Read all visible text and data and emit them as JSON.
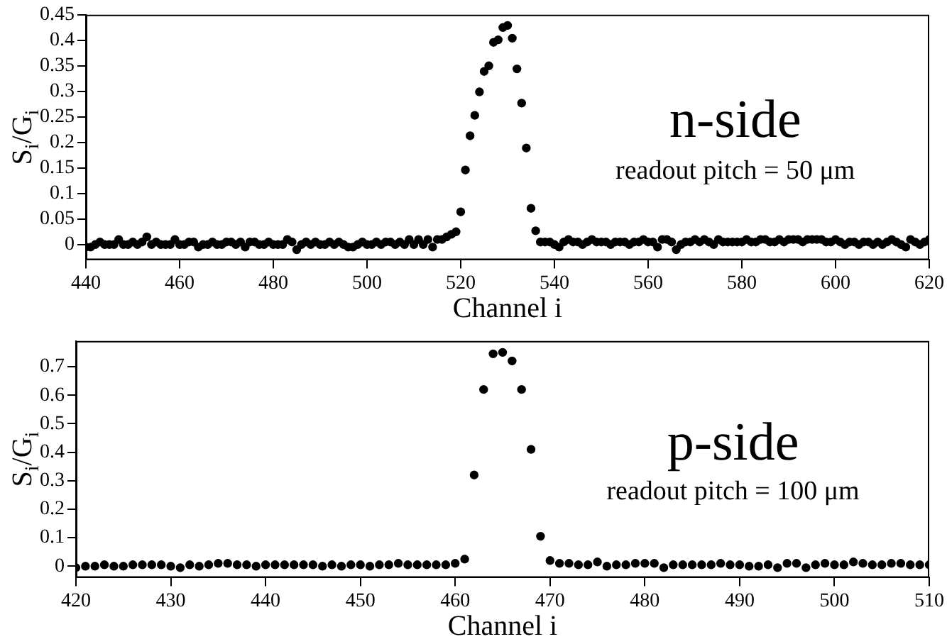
{
  "chart_data": [
    {
      "type": "scatter",
      "xlabel": "Channel i",
      "ylabel": "S$_{i}$/G$_{i}$",
      "marker": "circle",
      "grid": false,
      "legend": false,
      "annotations": [
        "n-side",
        "readout pitch = 50 μm"
      ],
      "xlim": [
        440,
        620
      ],
      "xticks": [
        440,
        460,
        480,
        500,
        520,
        540,
        560,
        580,
        600,
        620
      ],
      "ylim": [
        -0.03,
        0.45
      ],
      "yticks": [
        0,
        0.05,
        0.1,
        0.15,
        0.2,
        0.25,
        0.3,
        0.35,
        0.4,
        0.45
      ],
      "series": [
        {
          "color": "#000000",
          "x": [
            440,
            441,
            442,
            443,
            444,
            445,
            446,
            447,
            448,
            449,
            450,
            451,
            452,
            453,
            454,
            455,
            456,
            457,
            458,
            459,
            460,
            461,
            462,
            463,
            464,
            465,
            466,
            467,
            468,
            469,
            470,
            471,
            472,
            473,
            474,
            475,
            476,
            477,
            478,
            479,
            480,
            481,
            482,
            483,
            484,
            485,
            486,
            487,
            488,
            489,
            490,
            491,
            492,
            493,
            494,
            495,
            496,
            497,
            498,
            499,
            500,
            501,
            502,
            503,
            504,
            505,
            506,
            507,
            508,
            509,
            510,
            511,
            512,
            513,
            514,
            515,
            516,
            517,
            518,
            519,
            520,
            521,
            522,
            523,
            524,
            525,
            526,
            527,
            528,
            529,
            530,
            531,
            532,
            533,
            534,
            535,
            536,
            537,
            538,
            539,
            540,
            541,
            542,
            543,
            544,
            545,
            546,
            547,
            548,
            549,
            550,
            551,
            552,
            553,
            554,
            555,
            556,
            557,
            558,
            559,
            560,
            561,
            562,
            563,
            564,
            565,
            566,
            567,
            568,
            569,
            570,
            571,
            572,
            573,
            574,
            575,
            576,
            577,
            578,
            579,
            580,
            581,
            582,
            583,
            584,
            585,
            586,
            587,
            588,
            589,
            590,
            591,
            592,
            593,
            594,
            595,
            596,
            597,
            598,
            599,
            600,
            601,
            602,
            603,
            604,
            605,
            606,
            607,
            608,
            609,
            610,
            611,
            612,
            613,
            614,
            615,
            616,
            617,
            618,
            619,
            620
          ],
          "values": [
            -0.005,
            -0.005,
            0,
            0.005,
            0,
            0,
            0,
            0.01,
            0,
            0,
            0.005,
            0,
            0.005,
            0.015,
            0,
            0.005,
            0,
            0,
            0,
            0.01,
            0,
            0,
            0.005,
            0.005,
            -0.005,
            0,
            0,
            0.005,
            0,
            0,
            0.005,
            0.005,
            0,
            0.005,
            -0.005,
            0.005,
            0.005,
            0,
            0,
            0.005,
            0,
            0,
            0,
            0.01,
            0.005,
            -0.01,
            0,
            0.005,
            0,
            0.005,
            0,
            0,
            0.005,
            0,
            0.005,
            0,
            -0.005,
            -0.005,
            0,
            0.005,
            0,
            0,
            0.005,
            0,
            0.005,
            0.005,
            0,
            0.005,
            0,
            0.01,
            0,
            0.01,
            0,
            0.01,
            -0.005,
            0.01,
            0.01,
            0.015,
            0.02,
            0.025,
            0.064,
            0.146,
            0.213,
            0.253,
            0.299,
            0.339,
            0.35,
            0.396,
            0.401,
            0.425,
            0.429,
            0.404,
            0.344,
            0.277,
            0.189,
            0.071,
            0.027,
            0.005,
            0.005,
            0.005,
            0,
            -0.005,
            0.005,
            0.01,
            0.005,
            0.005,
            0,
            0.005,
            0.01,
            0.005,
            0.005,
            0.005,
            0,
            0.005,
            0.005,
            0.005,
            0,
            0.005,
            0.005,
            0.01,
            0.005,
            0.005,
            -0.005,
            0.01,
            0.01,
            0.005,
            -0.01,
            0,
            0.005,
            0.005,
            0.01,
            0.005,
            0.01,
            0.005,
            0,
            0.01,
            0.005,
            0.005,
            0.005,
            0.005,
            0.005,
            0.01,
            0.005,
            0.005,
            0.01,
            0.01,
            0.005,
            0.005,
            0.01,
            0.005,
            0.01,
            0.01,
            0.01,
            0.005,
            0.01,
            0.01,
            0.01,
            0.01,
            0.005,
            0.005,
            0.01,
            0.005,
            0,
            0.005,
            0.005,
            0,
            0.005,
            0.005,
            0,
            0.005,
            0,
            0.005,
            0.01,
            0.005,
            0,
            -0.005,
            0.01,
            0.005,
            0,
            0.005,
            0.01
          ]
        }
      ]
    },
    {
      "type": "scatter",
      "xlabel": "Channel i",
      "ylabel": "S$_{i}$/G$_{i}$",
      "marker": "circle",
      "grid": false,
      "legend": false,
      "annotations": [
        "p-side",
        "readout pitch = 100 μm"
      ],
      "xlim": [
        420,
        510
      ],
      "xticks": [
        420,
        430,
        440,
        450,
        460,
        470,
        480,
        490,
        500,
        510
      ],
      "ylim": [
        -0.04,
        0.79
      ],
      "yticks": [
        0,
        0.1,
        0.2,
        0.3,
        0.4,
        0.5,
        0.6,
        0.7
      ],
      "series": [
        {
          "color": "#000000",
          "x": [
            420,
            421,
            422,
            423,
            424,
            425,
            426,
            427,
            428,
            429,
            430,
            431,
            432,
            433,
            434,
            435,
            436,
            437,
            438,
            439,
            440,
            441,
            442,
            443,
            444,
            445,
            446,
            447,
            448,
            449,
            450,
            451,
            452,
            453,
            454,
            455,
            456,
            457,
            458,
            459,
            460,
            461,
            462,
            463,
            464,
            465,
            466,
            467,
            468,
            469,
            470,
            471,
            472,
            473,
            474,
            475,
            476,
            477,
            478,
            479,
            480,
            481,
            482,
            483,
            484,
            485,
            486,
            487,
            488,
            489,
            490,
            491,
            492,
            493,
            494,
            495,
            496,
            497,
            498,
            499,
            500,
            501,
            502,
            503,
            504,
            505,
            506,
            507,
            508,
            509,
            510
          ],
          "values": [
            -0.005,
            0,
            0,
            0.005,
            0,
            0,
            0.005,
            0.005,
            0.005,
            0.005,
            0,
            -0.005,
            0.005,
            0,
            0.005,
            0.01,
            0.01,
            0.005,
            0.005,
            0,
            0.005,
            0.005,
            0.005,
            0.005,
            0.005,
            0.005,
            0,
            0.005,
            0,
            0.005,
            0.005,
            0,
            0.005,
            0.005,
            0.01,
            0.005,
            0.005,
            0.005,
            0.005,
            0.005,
            0.01,
            0.025,
            0.32,
            0.62,
            0.745,
            0.75,
            0.72,
            0.62,
            0.41,
            0.105,
            0.02,
            0.01,
            0.01,
            0.005,
            0.005,
            0.015,
            0,
            0.005,
            0.005,
            0.01,
            0.01,
            0.01,
            -0.005,
            0.005,
            0.005,
            0.005,
            0.005,
            0.005,
            0.01,
            0.005,
            0.005,
            0,
            0,
            0.005,
            -0.005,
            0.01,
            0.01,
            -0.005,
            0.005,
            0.01,
            0.005,
            0.005,
            0.015,
            0.01,
            0.005,
            0.005,
            0.01,
            0.01,
            0.005,
            0.005,
            0.005
          ]
        }
      ]
    }
  ]
}
